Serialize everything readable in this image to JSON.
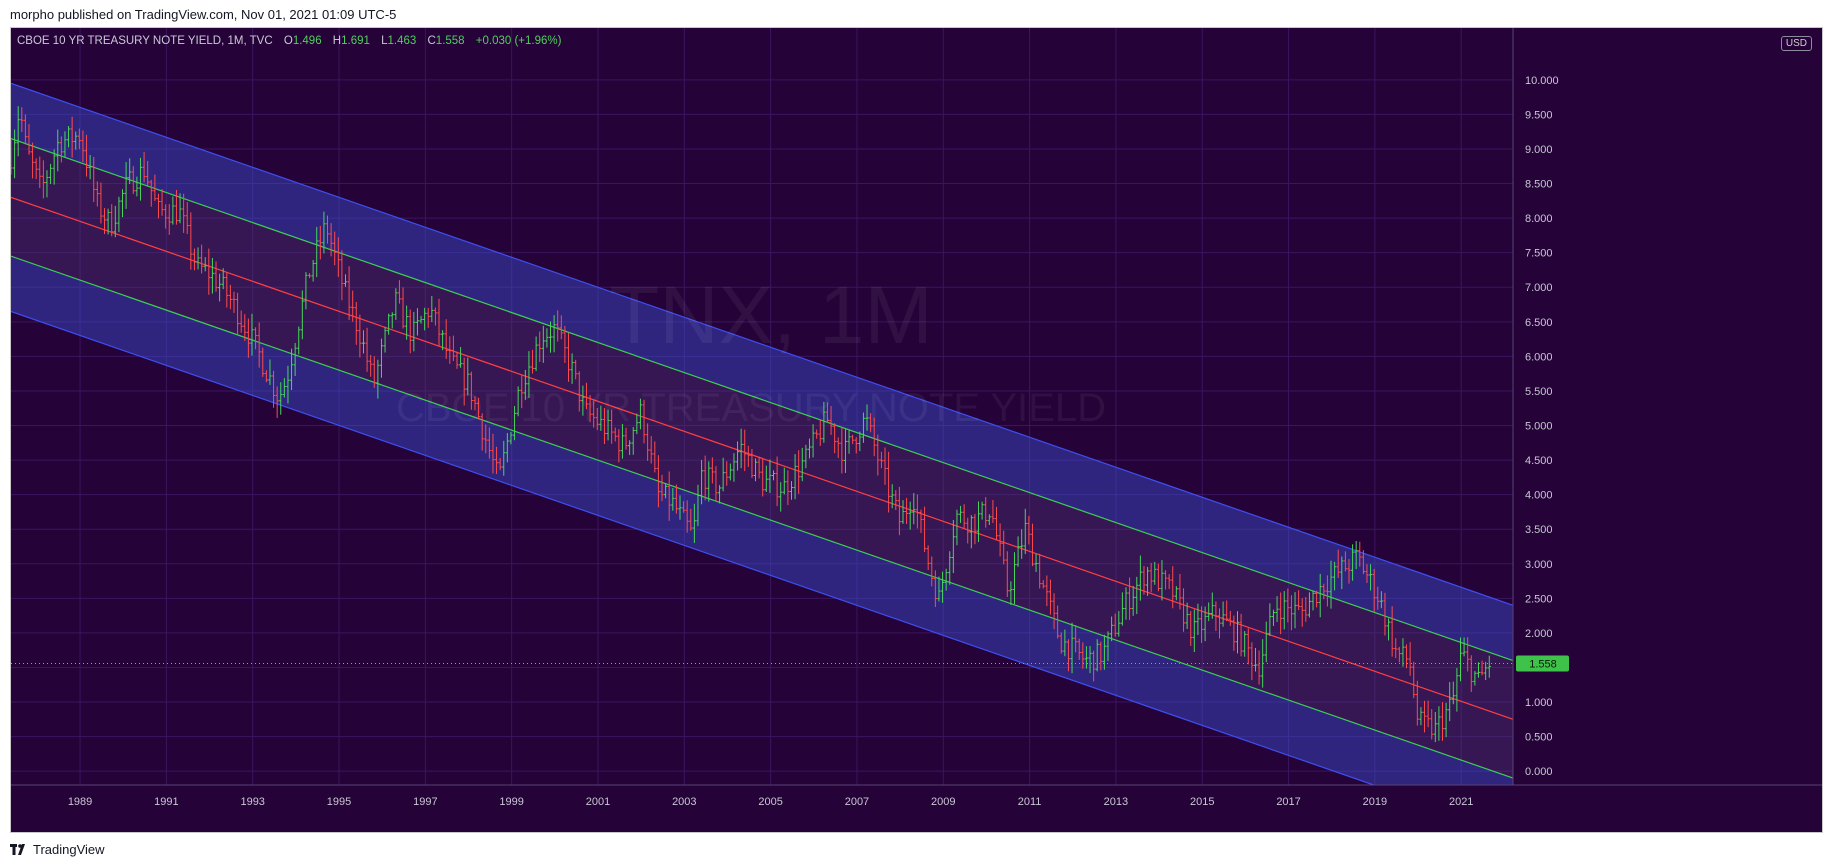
{
  "header": {
    "published_text": "morpho published on TradingView.com, Nov 01, 2021 01:09 UTC-5"
  },
  "legend": {
    "symbol": "CBOE 10 YR TREASURY NOTE YIELD, 1M, TVC",
    "open_label": "O",
    "open_value": "1.496",
    "high_label": "H",
    "high_value": "1.691",
    "low_label": "L",
    "low_value": "1.463",
    "close_label": "C",
    "close_value": "1.558",
    "change_value": "+0.030 (+1.96%)"
  },
  "currency_label": "USD",
  "watermark": {
    "line1": "TNX, 1M",
    "line2": "CBOE 10 YR TREASURY NOTE YIELD"
  },
  "footer": {
    "brand": "TradingView"
  },
  "colors": {
    "background": "#250238",
    "channel_outer": "#3d4ff0",
    "channel_inner": "#3ccf55",
    "regression_line": "#ff4040",
    "candle_up": "#46d65a",
    "candle_down": "#ff4a4a",
    "last_price_tag": "#3fc24a"
  },
  "chart_data": {
    "type": "ohlc",
    "title": "CBOE 10 YR TREASURY NOTE YIELD, 1M, TVC",
    "xlabel": "",
    "ylabel": "",
    "x_range": [
      1987.6,
      2022.4
    ],
    "ylim": [
      -0.2,
      10.75
    ],
    "grid": true,
    "y_ticks": [
      "0.000",
      "0.500",
      "1.000",
      "1.500",
      "2.000",
      "2.500",
      "3.000",
      "3.500",
      "4.000",
      "4.500",
      "5.000",
      "5.500",
      "6.000",
      "6.500",
      "7.000",
      "7.500",
      "8.000",
      "8.500",
      "9.000",
      "9.500",
      "10.000"
    ],
    "x_ticks": [
      "1989",
      "1991",
      "1993",
      "1995",
      "1997",
      "1999",
      "2001",
      "2003",
      "2005",
      "2007",
      "2009",
      "2011",
      "2013",
      "2015",
      "2017",
      "2019",
      "2021"
    ],
    "last_price": 1.558,
    "last_price_label": "1.558",
    "price_anchors": [
      [
        1987.6,
        8.9
      ],
      [
        1987.8,
        9.6
      ],
      [
        1987.95,
        9.0
      ],
      [
        1988.3,
        8.4
      ],
      [
        1988.7,
        9.1
      ],
      [
        1989.2,
        9.2
      ],
      [
        1989.6,
        8.2
      ],
      [
        1989.9,
        7.9
      ],
      [
        1990.3,
        8.5
      ],
      [
        1990.7,
        8.7
      ],
      [
        1991.0,
        8.1
      ],
      [
        1991.5,
        8.1
      ],
      [
        1991.9,
        7.3
      ],
      [
        1992.2,
        7.2
      ],
      [
        1992.5,
        7.0
      ],
      [
        1992.8,
        6.7
      ],
      [
        1993.3,
        6.1
      ],
      [
        1993.8,
        5.4
      ],
      [
        1994.0,
        5.7
      ],
      [
        1994.5,
        7.2
      ],
      [
        1994.9,
        7.9
      ],
      [
        1995.3,
        7.0
      ],
      [
        1995.7,
        6.3
      ],
      [
        1996.0,
        5.6
      ],
      [
        1996.5,
        6.8
      ],
      [
        1996.9,
        6.3
      ],
      [
        1997.3,
        6.7
      ],
      [
        1997.8,
        5.9
      ],
      [
        1998.2,
        5.6
      ],
      [
        1998.7,
        4.6
      ],
      [
        1998.9,
        4.2
      ],
      [
        1999.4,
        5.6
      ],
      [
        1999.9,
        6.3
      ],
      [
        2000.2,
        6.4
      ],
      [
        2000.6,
        5.8
      ],
      [
        2000.9,
        5.2
      ],
      [
        2001.3,
        5.0
      ],
      [
        2001.8,
        4.7
      ],
      [
        2002.2,
        5.2
      ],
      [
        2002.6,
        4.0
      ],
      [
        2002.9,
        3.9
      ],
      [
        2003.4,
        3.4
      ],
      [
        2003.6,
        4.3
      ],
      [
        2004.0,
        4.1
      ],
      [
        2004.5,
        4.7
      ],
      [
        2005.0,
        4.2
      ],
      [
        2005.5,
        4.1
      ],
      [
        2006.0,
        4.5
      ],
      [
        2006.5,
        5.1
      ],
      [
        2006.9,
        4.6
      ],
      [
        2007.4,
        5.1
      ],
      [
        2007.8,
        4.3
      ],
      [
        2008.2,
        3.6
      ],
      [
        2008.5,
        4.0
      ],
      [
        2008.9,
        2.9
      ],
      [
        2009.1,
        2.5
      ],
      [
        2009.5,
        3.7
      ],
      [
        2009.9,
        3.6
      ],
      [
        2010.3,
        3.8
      ],
      [
        2010.7,
        2.6
      ],
      [
        2011.1,
        3.5
      ],
      [
        2011.6,
        2.5
      ],
      [
        2011.9,
        1.9
      ],
      [
        2012.5,
        1.6
      ],
      [
        2012.9,
        1.7
      ],
      [
        2013.4,
        2.4
      ],
      [
        2013.9,
        2.9
      ],
      [
        2014.5,
        2.6
      ],
      [
        2015.0,
        2.0
      ],
      [
        2015.5,
        2.3
      ],
      [
        2016.0,
        2.0
      ],
      [
        2016.5,
        1.5
      ],
      [
        2016.9,
        2.4
      ],
      [
        2017.5,
        2.3
      ],
      [
        2018.0,
        2.7
      ],
      [
        2018.8,
        3.1
      ],
      [
        2019.3,
        2.5
      ],
      [
        2019.7,
        1.7
      ],
      [
        2020.0,
        1.6
      ],
      [
        2020.2,
        0.7
      ],
      [
        2020.6,
        0.6
      ],
      [
        2021.0,
        1.0
      ],
      [
        2021.2,
        1.7
      ],
      [
        2021.6,
        1.3
      ],
      [
        2021.85,
        1.56
      ]
    ],
    "regression_channel": {
      "start_year": 1987.6,
      "end_year": 2022.4,
      "center_start": 8.3,
      "center_end": 0.75,
      "inner_offset": 0.85,
      "outer_offset": 1.65
    }
  }
}
